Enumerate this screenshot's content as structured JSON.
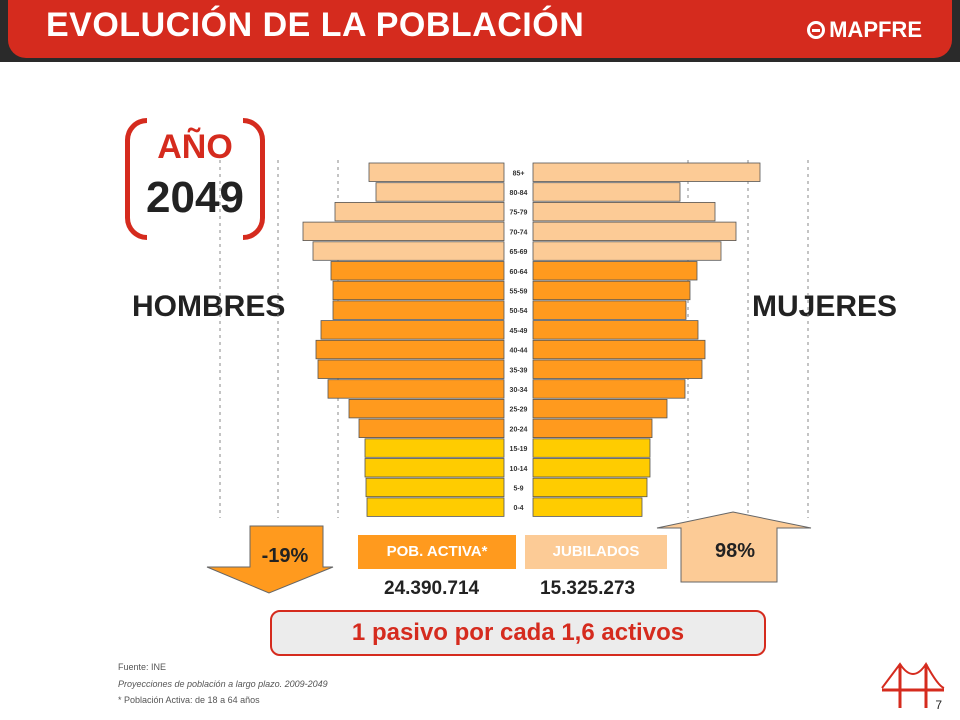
{
  "header": {
    "title": "EVOLUCIÓN DE LA POBLACIÓN",
    "brand": "MAPFRE"
  },
  "year": {
    "label": "AÑO",
    "value": "2049"
  },
  "side_labels": {
    "left": "HOMBRES",
    "right": "MUJERES"
  },
  "legend": {
    "active_label": "POB. ACTIVA*",
    "retired_label": "JUBILADOS",
    "active_value": "24.390.714",
    "retired_value": "15.325.273"
  },
  "changes": {
    "active": "-19%",
    "retired": "98%"
  },
  "summary": "1 pasivo por cada 1,6 activos",
  "footnotes": {
    "source": "Fuente: INE",
    "publication": "Proyecciones de población a largo plazo. 2009-2049",
    "note": "* Población Activa: de 18 a 64 años"
  },
  "page_number": "7",
  "colors": {
    "brand_red": "#d52b1e",
    "young": "#ffcc00",
    "active": "#ff9a1e",
    "retired": "#fccb96",
    "header_dark": "#2a2a2a"
  },
  "chart_data": {
    "type": "bar",
    "subtype": "population-pyramid",
    "categories": [
      "0-4",
      "5-9",
      "10-14",
      "15-19",
      "20-24",
      "25-29",
      "30-34",
      "35-39",
      "40-44",
      "45-49",
      "50-54",
      "55-59",
      "60-64",
      "65-69",
      "70-74",
      "75-79",
      "80-84",
      "85+"
    ],
    "series": [
      {
        "name": "HOMBRES",
        "values": [
          137,
          138,
          139,
          139,
          145,
          155,
          176,
          186,
          188,
          183,
          171,
          171,
          173,
          191,
          201,
          169,
          128,
          135
        ]
      },
      {
        "name": "MUJERES",
        "values": [
          109,
          114,
          117,
          117,
          119,
          134,
          152,
          169,
          172,
          165,
          153,
          157,
          164,
          188,
          203,
          182,
          147,
          227
        ]
      }
    ],
    "groups": {
      "young": [
        "0-4",
        "5-9",
        "10-14",
        "15-19"
      ],
      "active": [
        "20-24",
        "25-29",
        "30-34",
        "35-39",
        "40-44",
        "45-49",
        "50-54",
        "55-59",
        "60-64"
      ],
      "retired": [
        "65-69",
        "70-74",
        "75-79",
        "80-84",
        "85+"
      ]
    },
    "xlabel": "",
    "ylabel": "",
    "grid": true,
    "legend": "bottom"
  }
}
